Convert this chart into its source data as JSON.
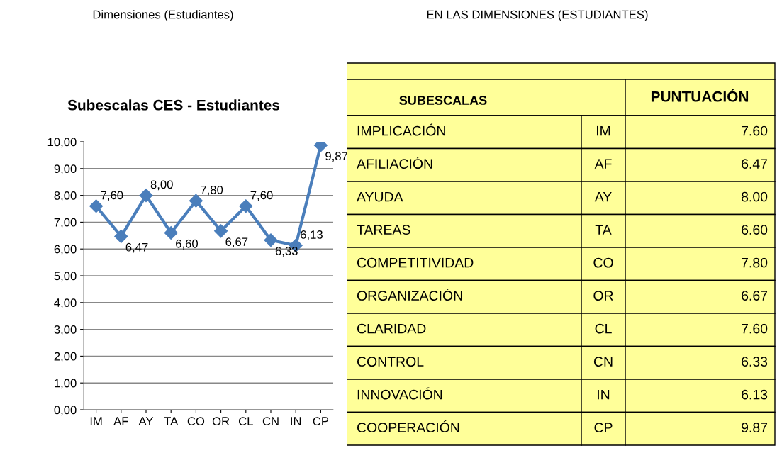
{
  "chart_data": [
    {
      "type": "line",
      "title": "Subescalas CES - Estudiantes",
      "annotations": [
        "Dimensiones (Estudiantes)"
      ],
      "categories": [
        "IM",
        "AF",
        "AY",
        "TA",
        "CO",
        "OR",
        "CL",
        "CN",
        "IN",
        "CP"
      ],
      "series": [
        {
          "color": "#4a7ebb",
          "values": [
            7.6,
            6.47,
            8.0,
            6.6,
            7.8,
            6.67,
            7.6,
            6.33,
            6.13,
            9.87
          ],
          "value_labels": [
            "7,60",
            "6,47",
            "8,00",
            "6,60",
            "7,80",
            "6,67",
            "7,60",
            "6,33",
            "6,13",
            "9,87"
          ]
        }
      ],
      "ylim": [
        0,
        10
      ],
      "yticks": [
        {
          "value": 0,
          "label": "0,00"
        },
        {
          "value": 1,
          "label": "1,00"
        },
        {
          "value": 2,
          "label": "2,00"
        },
        {
          "value": 3,
          "label": "3,00"
        },
        {
          "value": 4,
          "label": "4,00"
        },
        {
          "value": 5,
          "label": "5,00"
        },
        {
          "value": 6,
          "label": "6,00"
        },
        {
          "value": 7,
          "label": "7,00"
        },
        {
          "value": 8,
          "label": "8,00"
        },
        {
          "value": 9,
          "label": "9,00"
        },
        {
          "value": 10,
          "label": "10,00"
        }
      ],
      "grid": "y",
      "marker": "diamond",
      "line_style": "solid"
    },
    {
      "type": "other",
      "title": "EN LAS DIMENSIONES (ESTUDIANTES)",
      "annotations": [
        "SUBESCALAS",
        "PUNTUACIÓN"
      ],
      "categories": [
        "IMPLICACIÓN",
        "AFILIACIÓN",
        "AYUDA",
        "TAREAS",
        "COMPETITIVIDAD",
        "ORGANIZACIÓN",
        "CLARIDAD",
        "CONTROL",
        "INNOVACIÓN",
        "COOPERACIÓN"
      ],
      "y2_categories": [
        "IM",
        "AF",
        "AY",
        "TA",
        "CO",
        "OR",
        "CL",
        "CN",
        "IN",
        "CP"
      ],
      "value_labels": [
        "7.60",
        "6.47",
        "8.00",
        "6.60",
        "7.80",
        "6.67",
        "7.60",
        "6.33",
        "6.13",
        "9.87"
      ],
      "color": "#ffff99"
    }
  ]
}
